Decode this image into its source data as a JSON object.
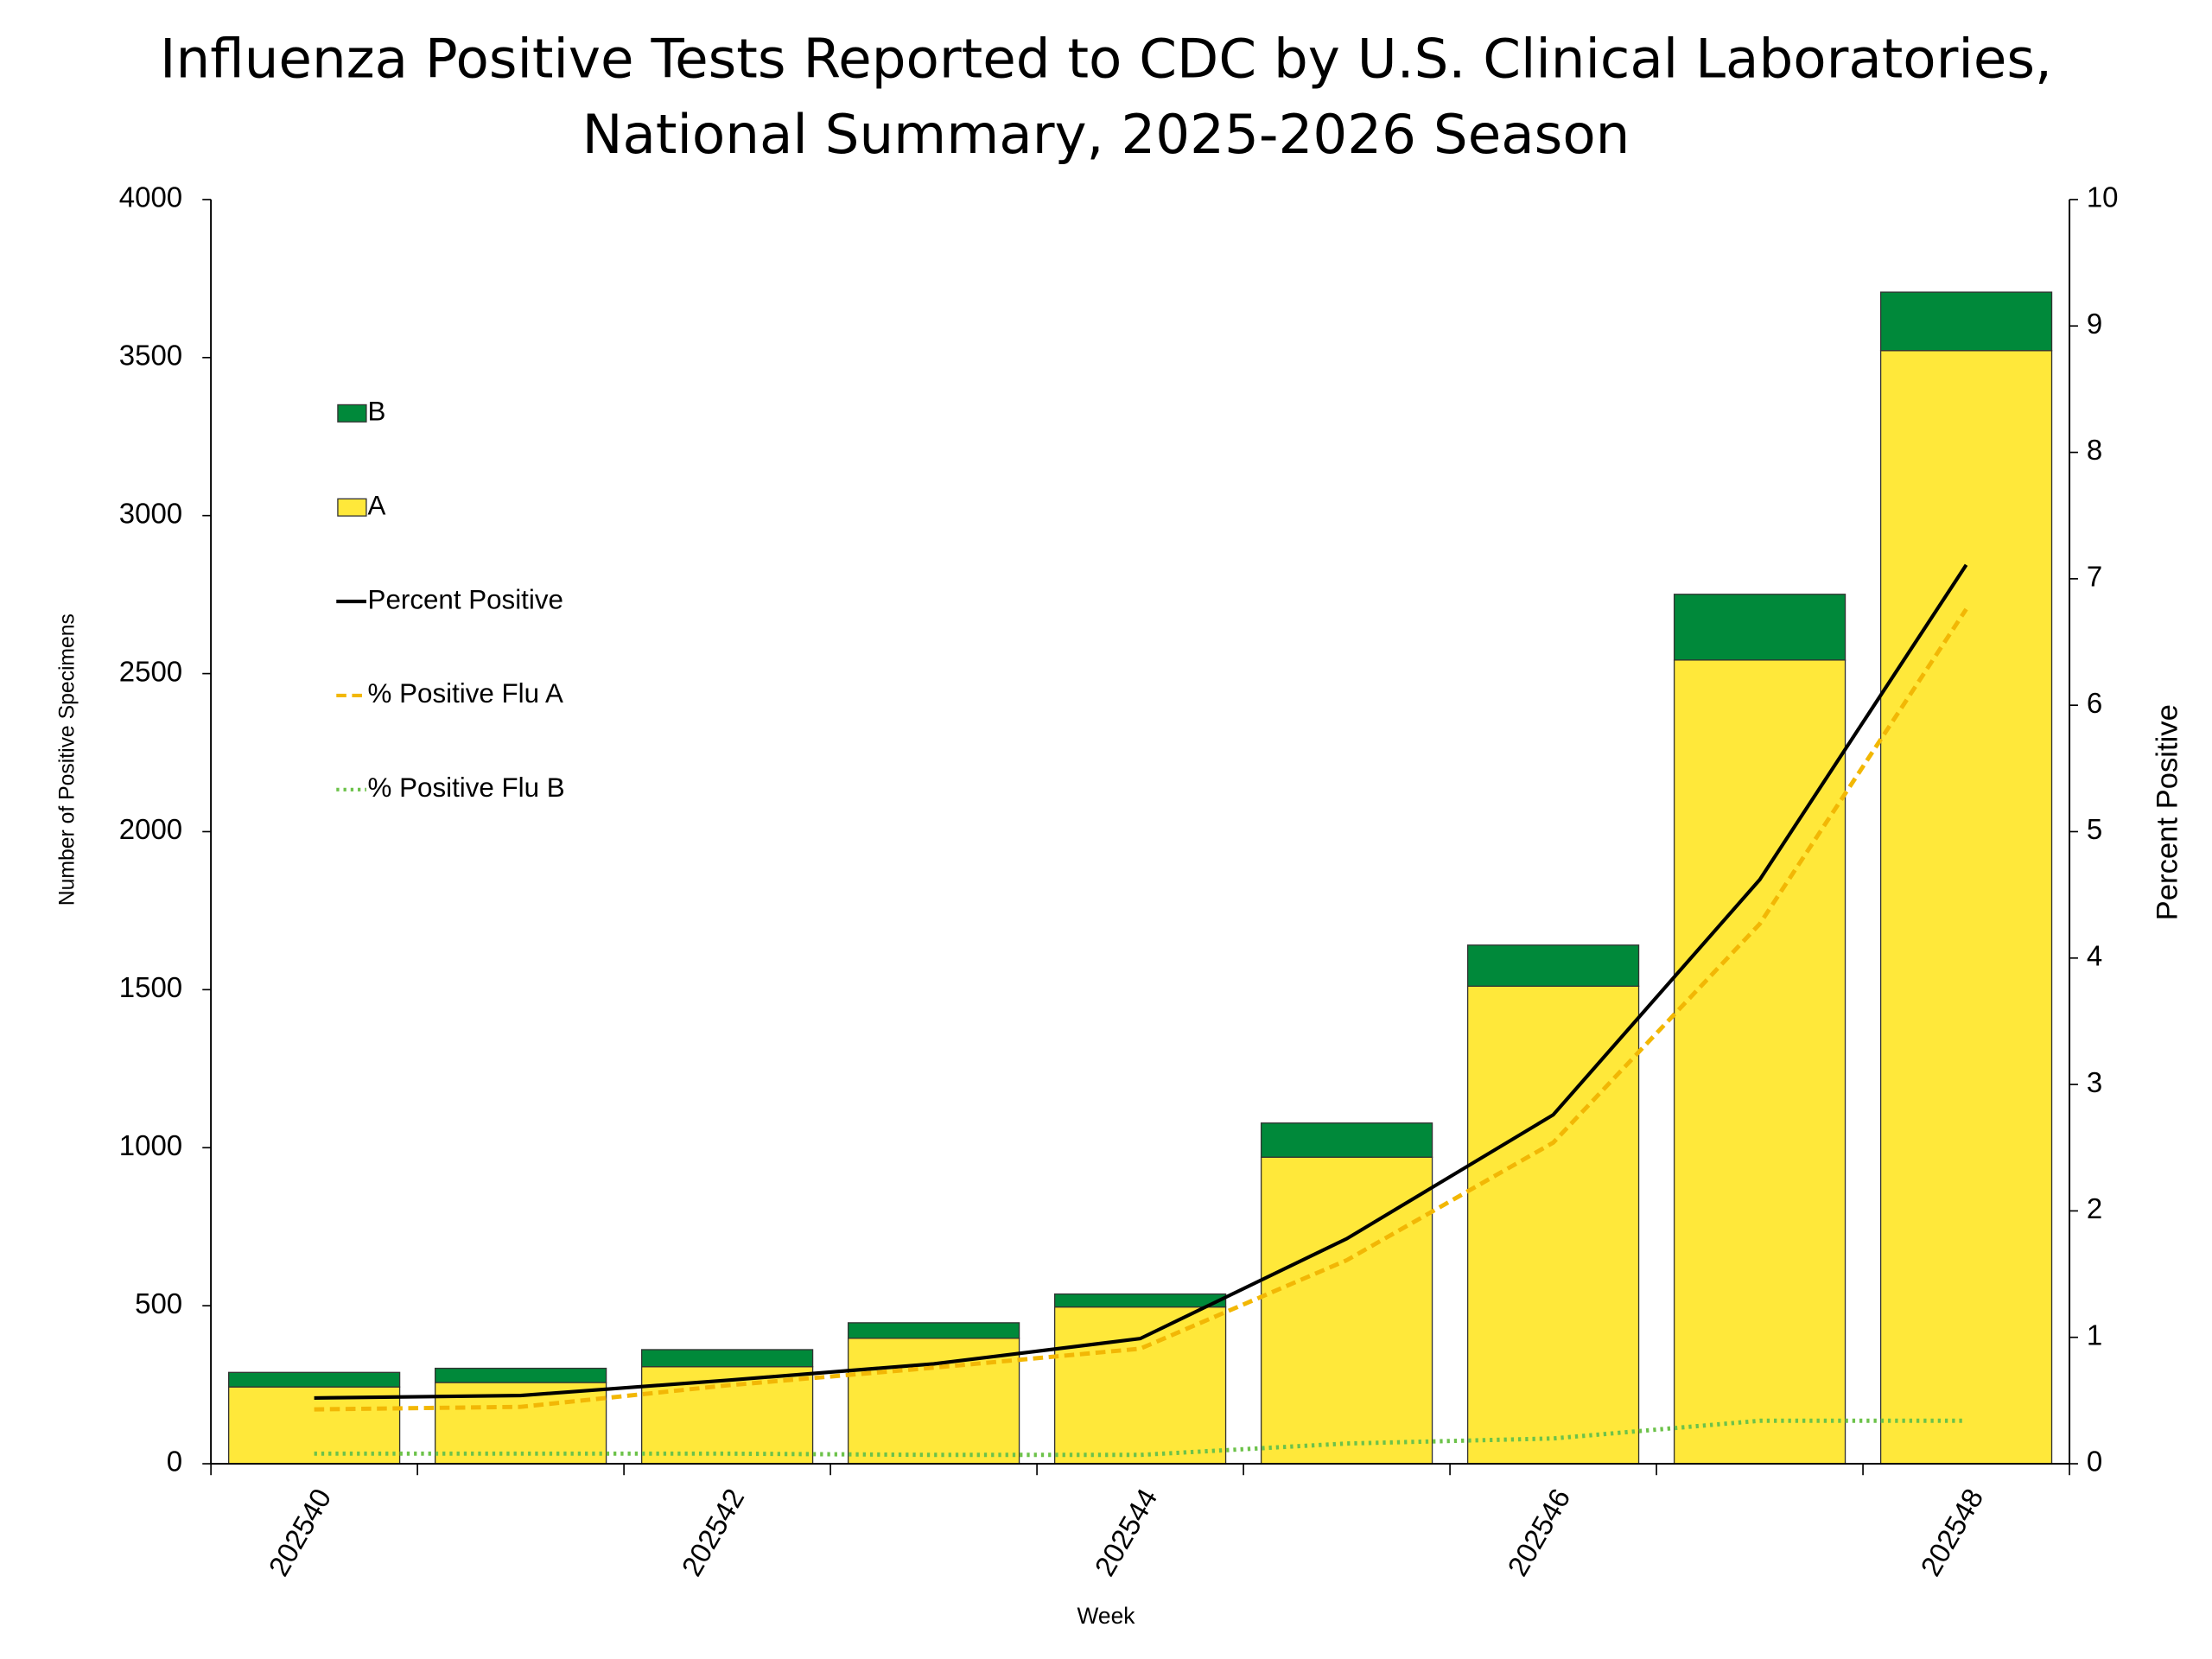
{
  "chart_data": {
    "type": "bar",
    "title": [
      "Influenza Positive Tests Reported to CDC by U.S. Clinical Laboratories,",
      "National Summary, 2025-2026 Season"
    ],
    "x_label": "Week",
    "y_label": "Number of Positive Specimens",
    "y2_label": "Percent Positive",
    "categories": [
      "202540",
      null,
      "202542",
      null,
      "202544",
      null,
      "202546",
      null,
      "202548"
    ],
    "series": [
      {
        "name": "A",
        "type": "bar",
        "color": "#ffe83a",
        "values": [
          243,
          257,
          307,
          397,
          496,
          970,
          1511,
          2543,
          3522
        ]
      },
      {
        "name": "B",
        "type": "bar",
        "color": "#00893a",
        "values": [
          46,
          45,
          54,
          49,
          41,
          108,
          130,
          208,
          185
        ]
      },
      {
        "name": "Percent Positive",
        "type": "line",
        "axis": "y2",
        "color": "#000000",
        "dash": "solid",
        "values": [
          0.52,
          0.54,
          0.66,
          0.79,
          0.99,
          1.78,
          2.76,
          4.62,
          7.11
        ]
      },
      {
        "name": "% Positive Flu A",
        "type": "line",
        "axis": "y2",
        "color": "#f2b705",
        "dash": "dashed",
        "values": [
          0.43,
          0.45,
          0.62,
          0.76,
          0.91,
          1.61,
          2.54,
          4.27,
          6.76
        ]
      },
      {
        "name": "% Positive Flu B",
        "type": "line",
        "axis": "y2",
        "color": "#6cc24a",
        "dash": "dotted",
        "values": [
          0.08,
          0.08,
          0.08,
          0.07,
          0.07,
          0.16,
          0.2,
          0.34,
          0.34
        ]
      }
    ],
    "ylim": [
      0,
      4000
    ],
    "yticks": [
      0,
      500,
      1000,
      1500,
      2000,
      2500,
      3000,
      3500,
      4000
    ],
    "y2lim": [
      0,
      10
    ],
    "y2ticks": [
      0,
      1,
      2,
      3,
      4,
      5,
      6,
      7,
      8,
      9,
      10
    ],
    "grid": false,
    "legend": "upper-left"
  }
}
